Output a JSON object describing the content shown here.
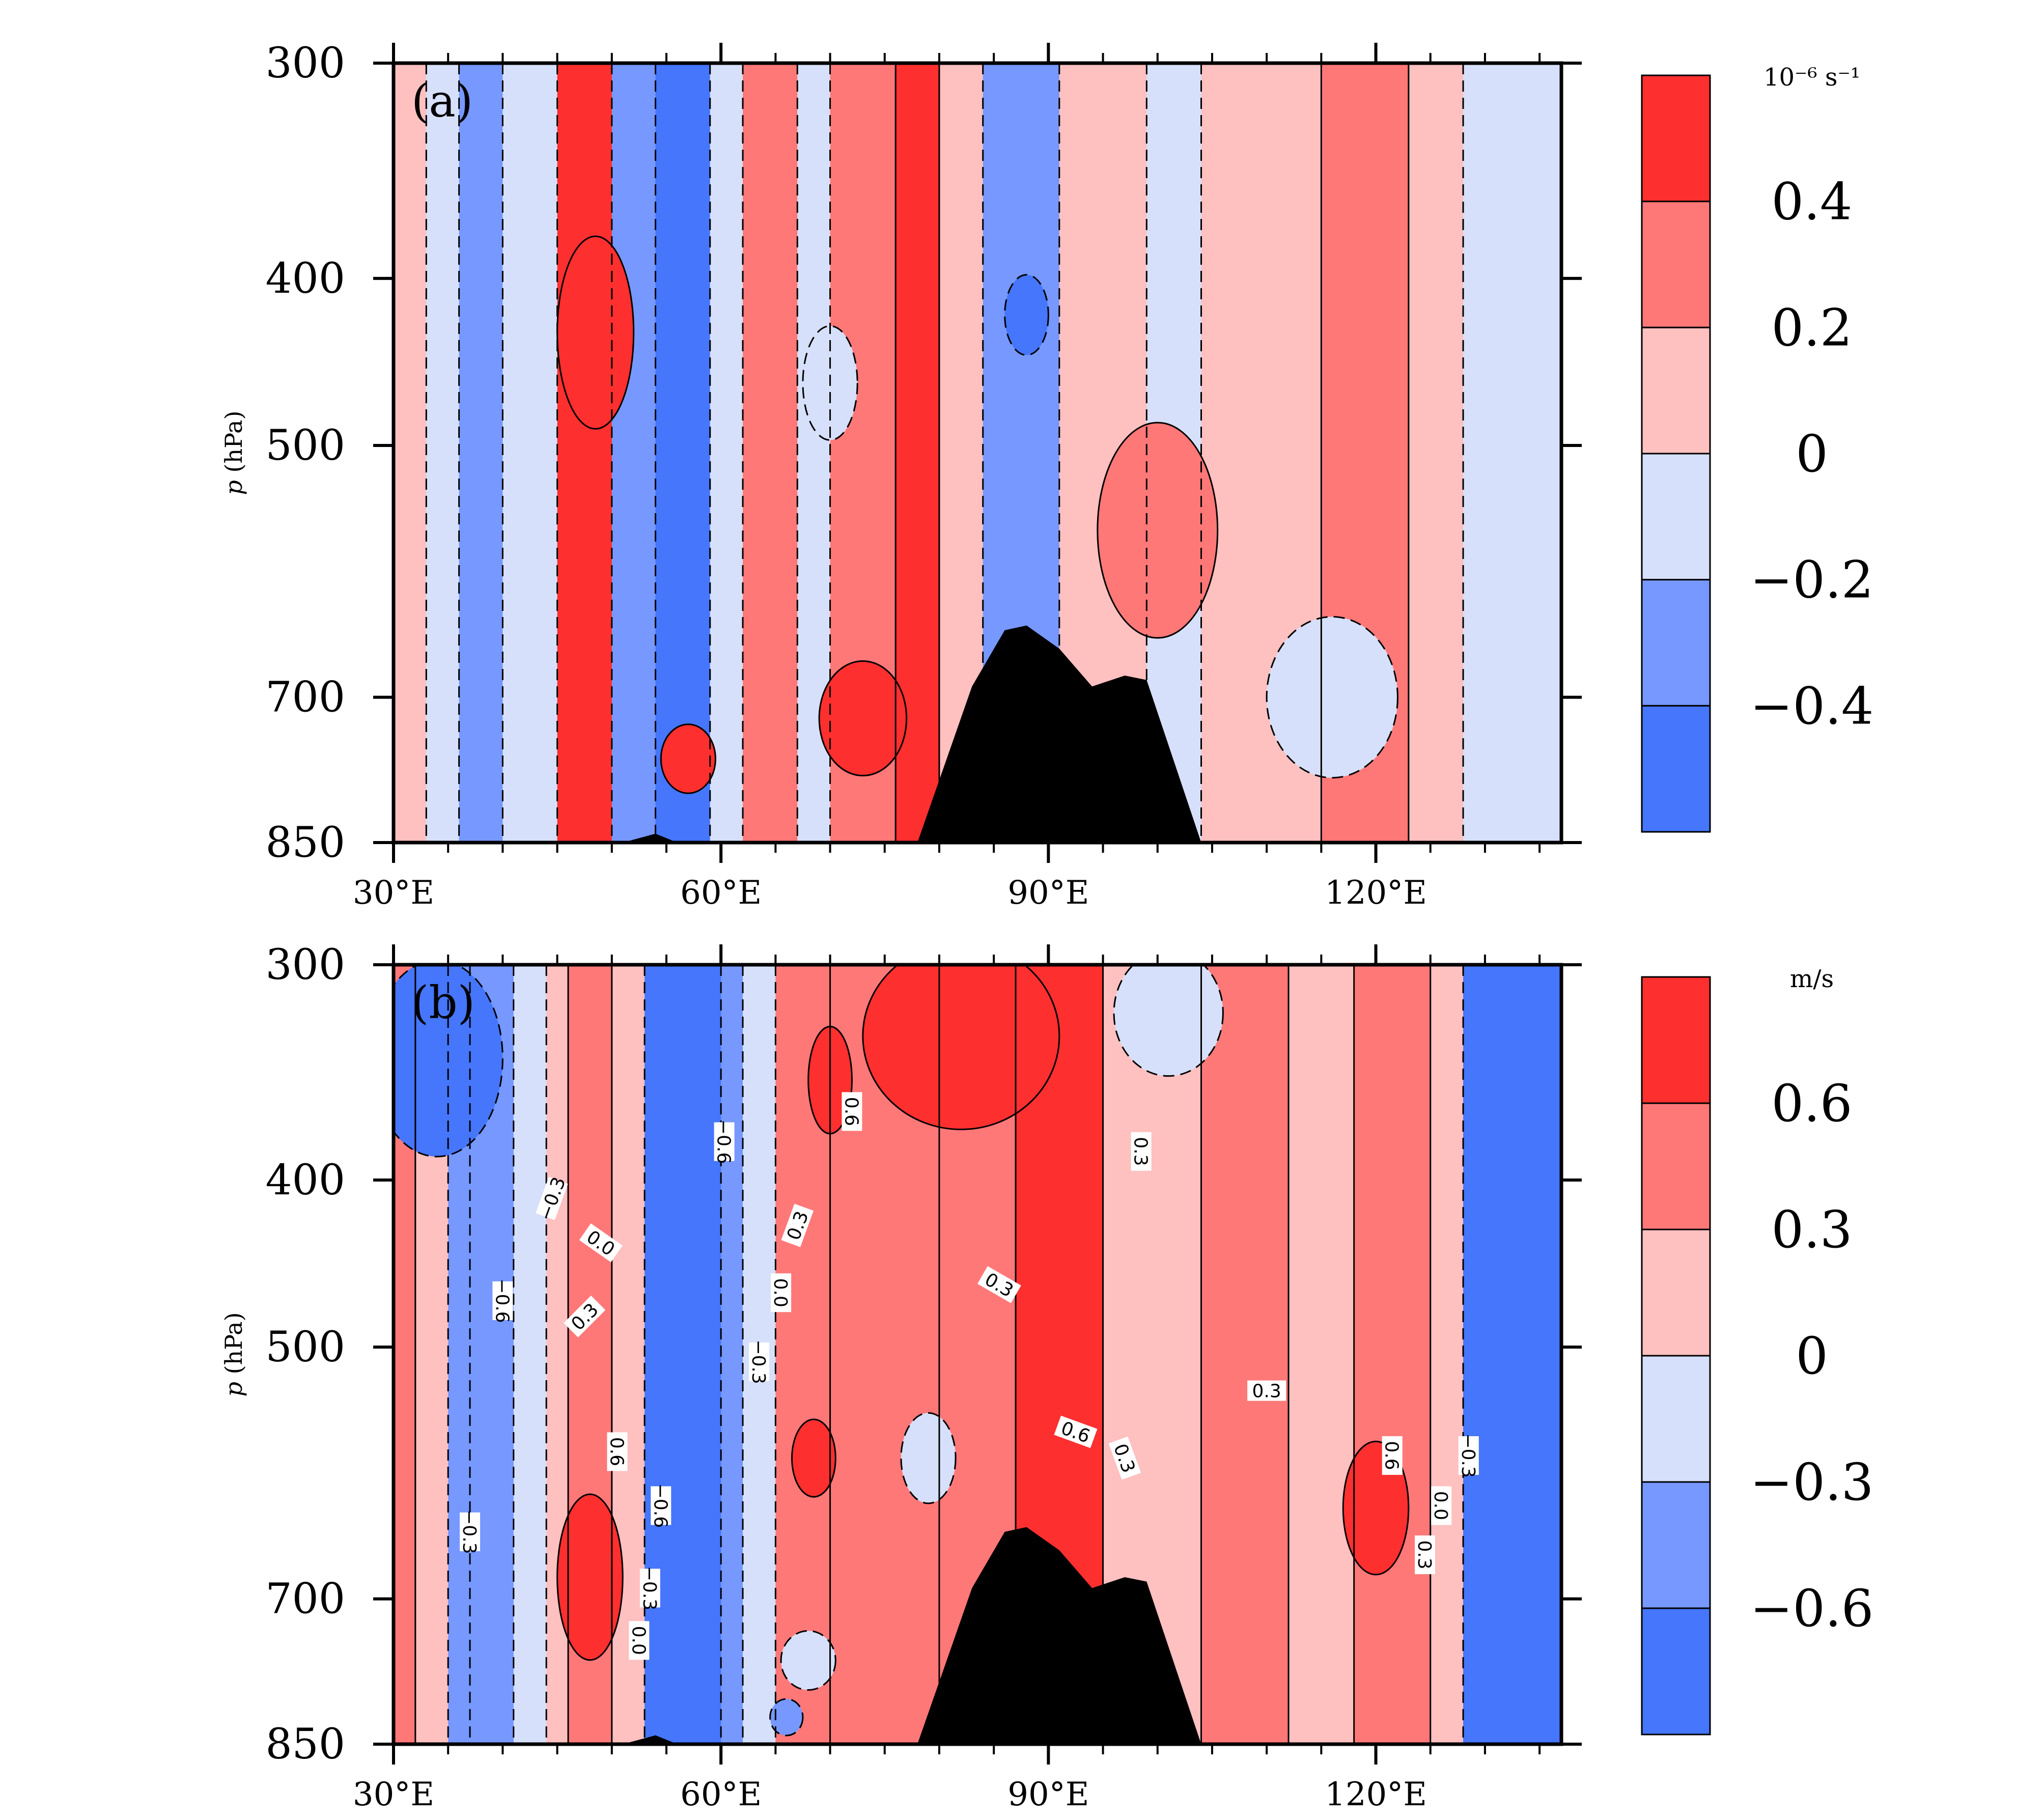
{
  "chart_data": [
    {
      "type": "heatmap",
      "panel_label": "(a)",
      "ylabel": "p (hPa)",
      "ylabel_italic": "p",
      "ylabel_rest": " (hPa)",
      "units": "10⁻⁶ s⁻¹",
      "x_ticks": [
        "30°E",
        "60°E",
        "90°E",
        "120°E"
      ],
      "x_tick_values": [
        30,
        60,
        90,
        120
      ],
      "xlim": [
        30,
        137
      ],
      "y_ticks": [
        "300",
        "400",
        "500",
        "700",
        "850"
      ],
      "y_tick_values": [
        300,
        400,
        500,
        700,
        850
      ],
      "ylim": [
        300,
        850
      ],
      "y_scale": "log",
      "colorbar_levels": [
        -0.4,
        -0.2,
        0,
        0.2,
        0.4
      ],
      "colorbar_labels": [
        "0.4",
        "0.2",
        "0",
        "−0.2",
        "−0.4"
      ],
      "colorbar_colors": [
        "#fe2f2f",
        "#ff7878",
        "#ffc0c0",
        "#d6e0fa",
        "#7698ff",
        "#4576fb"
      ],
      "contour_labels": [],
      "columns": [
        {
          "x0": 30,
          "x1": 33,
          "v": 0.1
        },
        {
          "x0": 33,
          "x1": 36,
          "v": -0.1
        },
        {
          "x0": 36,
          "x1": 40,
          "v": -0.3
        },
        {
          "x0": 40,
          "x1": 45,
          "v": -0.1
        },
        {
          "x0": 45,
          "x1": 50,
          "v": 0.5
        },
        {
          "x0": 50,
          "x1": 54,
          "v": -0.3
        },
        {
          "x0": 54,
          "x1": 59,
          "v": -0.5
        },
        {
          "x0": 59,
          "x1": 62,
          "v": -0.1
        },
        {
          "x0": 62,
          "x1": 67,
          "v": 0.3
        },
        {
          "x0": 67,
          "x1": 70,
          "v": -0.1
        },
        {
          "x0": 70,
          "x1": 76,
          "v": 0.3
        },
        {
          "x0": 76,
          "x1": 80,
          "v": 0.5
        },
        {
          "x0": 80,
          "x1": 84,
          "v": 0.1
        },
        {
          "x0": 84,
          "x1": 91,
          "v": -0.3
        },
        {
          "x0": 91,
          "x1": 99,
          "v": 0.1
        },
        {
          "x0": 99,
          "x1": 104,
          "v": -0.1
        },
        {
          "x0": 104,
          "x1": 115,
          "v": 0.1
        },
        {
          "x0": 115,
          "x1": 123,
          "v": 0.3
        },
        {
          "x0": 123,
          "x1": 128,
          "v": 0.1
        },
        {
          "x0": 128,
          "x1": 137,
          "v": -0.1
        }
      ],
      "blobs": [
        {
          "lon": 48.5,
          "p": 430,
          "dlon": 3.5,
          "dp": 110,
          "v": 0.5
        },
        {
          "lon": 57,
          "p": 760,
          "dlon": 2.5,
          "dp": 70,
          "v": 0.5
        },
        {
          "lon": 73,
          "p": 720,
          "dlon": 4.0,
          "dp": 110,
          "v": 0.5
        },
        {
          "lon": 88,
          "p": 420,
          "dlon": 2.0,
          "dp": 45,
          "v": -0.5
        },
        {
          "lon": 100,
          "p": 560,
          "dlon": 5.5,
          "dp": 160,
          "v": 0.3
        },
        {
          "lon": 116,
          "p": 700,
          "dlon": 6.0,
          "dp": 150,
          "v": -0.1
        },
        {
          "lon": 70,
          "p": 460,
          "dlon": 2.5,
          "dp": 70,
          "v": -0.1
        }
      ],
      "terrain_hpa": [
        [
          51,
          850
        ],
        [
          54,
          840
        ],
        [
          56,
          850
        ],
        [
          78,
          850
        ],
        [
          83,
          690
        ],
        [
          86,
          640
        ],
        [
          88,
          636
        ],
        [
          91,
          656
        ],
        [
          94,
          690
        ],
        [
          97,
          680
        ],
        [
          99,
          684
        ],
        [
          104,
          850
        ]
      ]
    },
    {
      "type": "heatmap",
      "panel_label": "(b)",
      "ylabel": "p (hPa)",
      "ylabel_italic": "p",
      "ylabel_rest": " (hPa)",
      "units": "m/s",
      "x_ticks": [
        "30°E",
        "60°E",
        "90°E",
        "120°E"
      ],
      "x_tick_values": [
        30,
        60,
        90,
        120
      ],
      "xlim": [
        30,
        137
      ],
      "y_ticks": [
        "300",
        "400",
        "500",
        "700",
        "850"
      ],
      "y_tick_values": [
        300,
        400,
        500,
        700,
        850
      ],
      "ylim": [
        300,
        850
      ],
      "y_scale": "log",
      "colorbar_levels": [
        -0.6,
        -0.3,
        0,
        0.3,
        0.6
      ],
      "colorbar_labels": [
        "0.6",
        "0.3",
        "0",
        "−0.3",
        "−0.6"
      ],
      "colorbar_colors": [
        "#fe2f2f",
        "#ff7878",
        "#ffc0c0",
        "#d6e0fa",
        "#7698ff",
        "#4576fb"
      ],
      "contour_labels": [
        {
          "text": "0.6",
          "lon": 72,
          "p": 365,
          "rot": 90
        },
        {
          "text": "−0.6",
          "lon": 60.3,
          "p": 380,
          "rot": 90
        },
        {
          "text": "0.3",
          "lon": 98.5,
          "p": 385,
          "rot": 90
        },
        {
          "text": "−0.3",
          "lon": 44.5,
          "p": 410,
          "rot": -70
        },
        {
          "text": "0.0",
          "lon": 49,
          "p": 435,
          "rot": 35
        },
        {
          "text": "0.3",
          "lon": 67,
          "p": 425,
          "rot": -70
        },
        {
          "text": "0.3",
          "lon": 85.5,
          "p": 460,
          "rot": 30
        },
        {
          "text": "−0.6",
          "lon": 40,
          "p": 470,
          "rot": 90
        },
        {
          "text": "0.0",
          "lon": 65.5,
          "p": 465,
          "rot": 90
        },
        {
          "text": "0.3",
          "lon": 47.5,
          "p": 480,
          "rot": -45
        },
        {
          "text": "−0.3",
          "lon": 63.5,
          "p": 510,
          "rot": 90
        },
        {
          "text": "0.3",
          "lon": 110,
          "p": 530,
          "rot": 0
        },
        {
          "text": "0.6",
          "lon": 92.5,
          "p": 560,
          "rot": 20
        },
        {
          "text": "0.3",
          "lon": 97,
          "p": 580,
          "rot": 70
        },
        {
          "text": "0.6",
          "lon": 50.5,
          "p": 575,
          "rot": 90
        },
        {
          "text": "0.6",
          "lon": 121.5,
          "p": 578,
          "rot": 90
        },
        {
          "text": "−0.3",
          "lon": 128.5,
          "p": 578,
          "rot": 90
        },
        {
          "text": "−0.6",
          "lon": 54.5,
          "p": 618,
          "rot": 90
        },
        {
          "text": "0.0",
          "lon": 126,
          "p": 618,
          "rot": 90
        },
        {
          "text": "−0.3",
          "lon": 37,
          "p": 640,
          "rot": 90
        },
        {
          "text": "0.3",
          "lon": 124.5,
          "p": 660,
          "rot": 90
        },
        {
          "text": "−0.3",
          "lon": 53.5,
          "p": 690,
          "rot": 90
        },
        {
          "text": "0.0",
          "lon": 52.5,
          "p": 740,
          "rot": 90
        }
      ],
      "columns": [
        {
          "x0": 30,
          "x1": 32,
          "v": 0.5
        },
        {
          "x0": 32,
          "x1": 35,
          "v": 0.2
        },
        {
          "x0": 35,
          "x1": 37,
          "v": -0.45
        },
        {
          "x0": 37,
          "x1": 41,
          "v": -0.5
        },
        {
          "x0": 41,
          "x1": 44,
          "v": -0.1
        },
        {
          "x0": 44,
          "x1": 46,
          "v": 0.1
        },
        {
          "x0": 46,
          "x1": 50,
          "v": 0.45
        },
        {
          "x0": 50,
          "x1": 53,
          "v": 0.1
        },
        {
          "x0": 53,
          "x1": 60,
          "v": -0.8
        },
        {
          "x0": 60,
          "x1": 62,
          "v": -0.45
        },
        {
          "x0": 62,
          "x1": 65,
          "v": -0.1
        },
        {
          "x0": 65,
          "x1": 70,
          "v": 0.45
        },
        {
          "x0": 70,
          "x1": 80,
          "v": 0.5
        },
        {
          "x0": 80,
          "x1": 87,
          "v": 0.45
        },
        {
          "x0": 87,
          "x1": 95,
          "v": 0.7
        },
        {
          "x0": 95,
          "x1": 104,
          "v": 0.2
        },
        {
          "x0": 104,
          "x1": 112,
          "v": 0.45
        },
        {
          "x0": 112,
          "x1": 118,
          "v": 0.2
        },
        {
          "x0": 118,
          "x1": 125,
          "v": 0.45
        },
        {
          "x0": 125,
          "x1": 128,
          "v": 0.1
        },
        {
          "x0": 128,
          "x1": 137,
          "v": -0.7
        }
      ],
      "blobs": [
        {
          "lon": 34,
          "p": 340,
          "dlon": 6.0,
          "dp": 100,
          "v": -0.8
        },
        {
          "lon": 70,
          "p": 350,
          "dlon": 2.0,
          "dp": 50,
          "v": 0.7
        },
        {
          "lon": 82,
          "p": 330,
          "dlon": 9.0,
          "dp": 110,
          "v": 0.7
        },
        {
          "lon": 120,
          "p": 620,
          "dlon": 3.0,
          "dp": 110,
          "v": 0.7
        },
        {
          "lon": 48,
          "p": 680,
          "dlon": 3.0,
          "dp": 150,
          "v": 0.7
        },
        {
          "lon": 68.5,
          "p": 580,
          "dlon": 2.0,
          "dp": 60,
          "v": 0.7
        },
        {
          "lon": 79,
          "p": 580,
          "dlon": 2.5,
          "dp": 70,
          "v": -0.1
        },
        {
          "lon": 101,
          "p": 320,
          "dlon": 5.0,
          "dp": 70,
          "v": -0.1
        },
        {
          "lon": 68,
          "p": 760,
          "dlon": 2.5,
          "dp": 60,
          "v": -0.1
        },
        {
          "lon": 66,
          "p": 820,
          "dlon": 1.5,
          "dp": 40,
          "v": -0.45
        }
      ],
      "terrain_hpa": [
        [
          51,
          850
        ],
        [
          54,
          840
        ],
        [
          56,
          850
        ],
        [
          78,
          850
        ],
        [
          83,
          690
        ],
        [
          86,
          640
        ],
        [
          88,
          636
        ],
        [
          91,
          656
        ],
        [
          94,
          690
        ],
        [
          97,
          680
        ],
        [
          99,
          684
        ],
        [
          104,
          850
        ]
      ]
    }
  ]
}
